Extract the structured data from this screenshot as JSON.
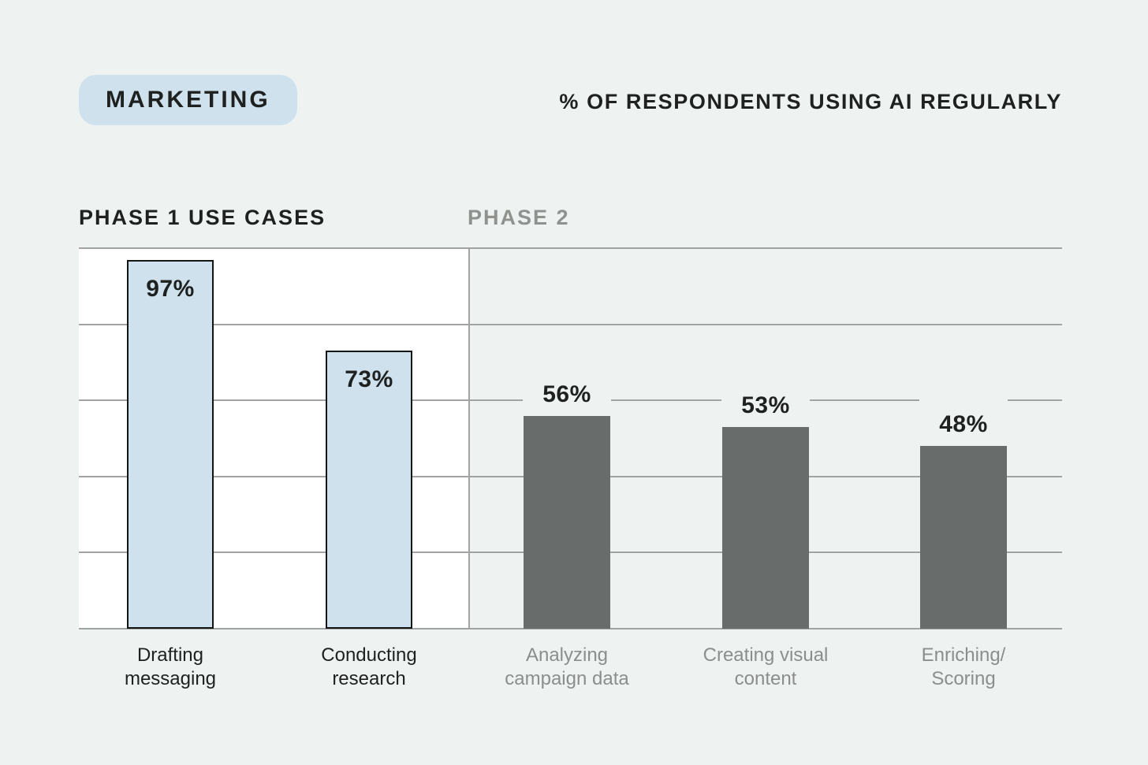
{
  "header": {
    "badge": "MARKETING",
    "subtitle": "% OF RESPONDENTS USING AI REGULARLY"
  },
  "chart_data": {
    "type": "bar",
    "title": "MARKETING",
    "subtitle": "% OF RESPONDENTS USING AI REGULARLY",
    "ylabel": "% of respondents using AI regularly",
    "ylim": [
      0,
      100
    ],
    "gridline_values": [
      0,
      20,
      40,
      60,
      80,
      100
    ],
    "grid": "horizontal",
    "legend": "none",
    "groups": [
      {
        "id": "phase1",
        "label": "PHASE 1 USE CASES"
      },
      {
        "id": "phase2",
        "label": "PHASE 2"
      }
    ],
    "categories": [
      "Drafting messaging",
      "Conducting research",
      "Analyzing campaign data",
      "Creating visual content",
      "Enriching/Scoring"
    ],
    "values": [
      97,
      73,
      56,
      53,
      48
    ],
    "bars": [
      {
        "category": "Drafting messaging",
        "category_lines": [
          "Drafting",
          "messaging"
        ],
        "value": 97,
        "value_label": "97%",
        "group": "phase1"
      },
      {
        "category": "Conducting research",
        "category_lines": [
          "Conducting",
          "research"
        ],
        "value": 73,
        "value_label": "73%",
        "group": "phase1"
      },
      {
        "category": "Analyzing campaign data",
        "category_lines": [
          "Analyzing",
          "campaign data"
        ],
        "value": 56,
        "value_label": "56%",
        "group": "phase2"
      },
      {
        "category": "Creating visual content",
        "category_lines": [
          "Creating visual",
          "content"
        ],
        "value": 53,
        "value_label": "53%",
        "group": "phase2"
      },
      {
        "category": "Enriching/Scoring",
        "category_lines": [
          "Enriching/",
          "Scoring"
        ],
        "value": 48,
        "value_label": "48%",
        "group": "phase2"
      }
    ],
    "colors": {
      "page_background": "#eef2f0",
      "phase1_panel": "#ffffff",
      "phase1_bar_fill": "#cee1ed",
      "phase1_bar_border": "#131615",
      "phase2_bar_fill": "#686c6a",
      "gridline": "#a0a3a1",
      "text_dark": "#1e2120",
      "text_gray": "#8b8e8c"
    }
  }
}
